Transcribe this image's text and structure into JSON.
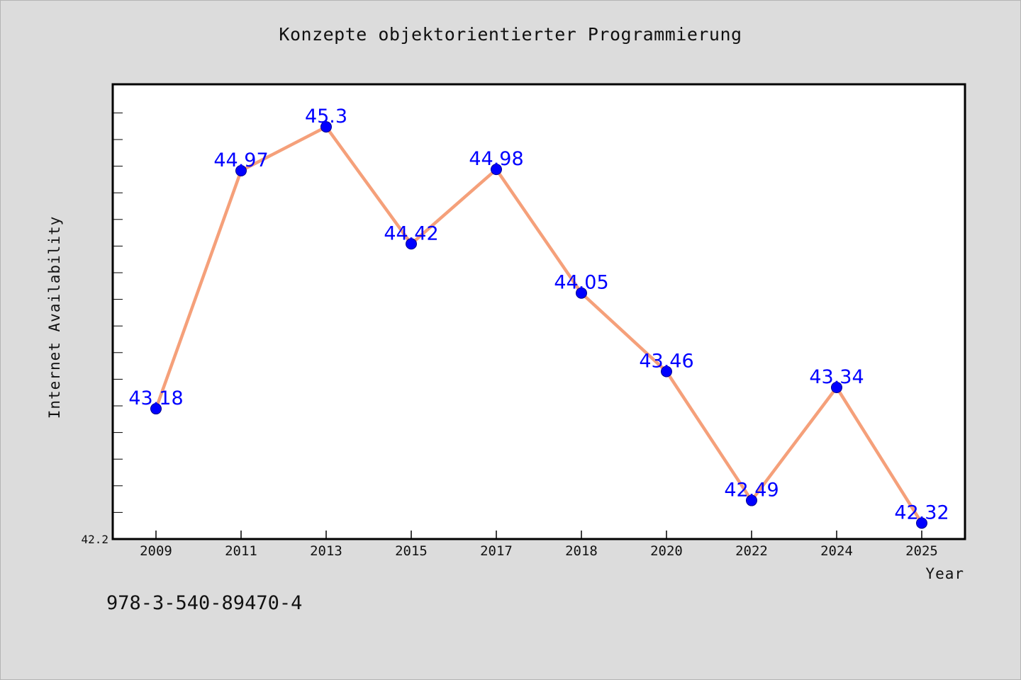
{
  "chart_data": {
    "type": "line",
    "title": "Konzepte objektorientierter Programmierung",
    "xlabel": "Year",
    "ylabel": "Internet Availability",
    "categories": [
      "2009",
      "2011",
      "2013",
      "2015",
      "2017",
      "2018",
      "2020",
      "2022",
      "2024",
      "2025"
    ],
    "series": [
      {
        "values": [
          43.18,
          44.97,
          45.3,
          44.42,
          44.98,
          44.05,
          43.46,
          42.49,
          43.34,
          42.32
        ],
        "line_color": "#f5a07a",
        "marker_color": "#0000ff"
      }
    ],
    "data_labels": [
      "43.18",
      "44.97",
      "45.3",
      "44.42",
      "44.98",
      "44.05",
      "43.46",
      "42.49",
      "43.34",
      "42.32"
    ],
    "y_tick_labels": [
      "42.2"
    ],
    "ylim": [
      42.2,
      45.62
    ],
    "grid": false,
    "legend": "none"
  },
  "footer_text": "978-3-540-89470-4"
}
